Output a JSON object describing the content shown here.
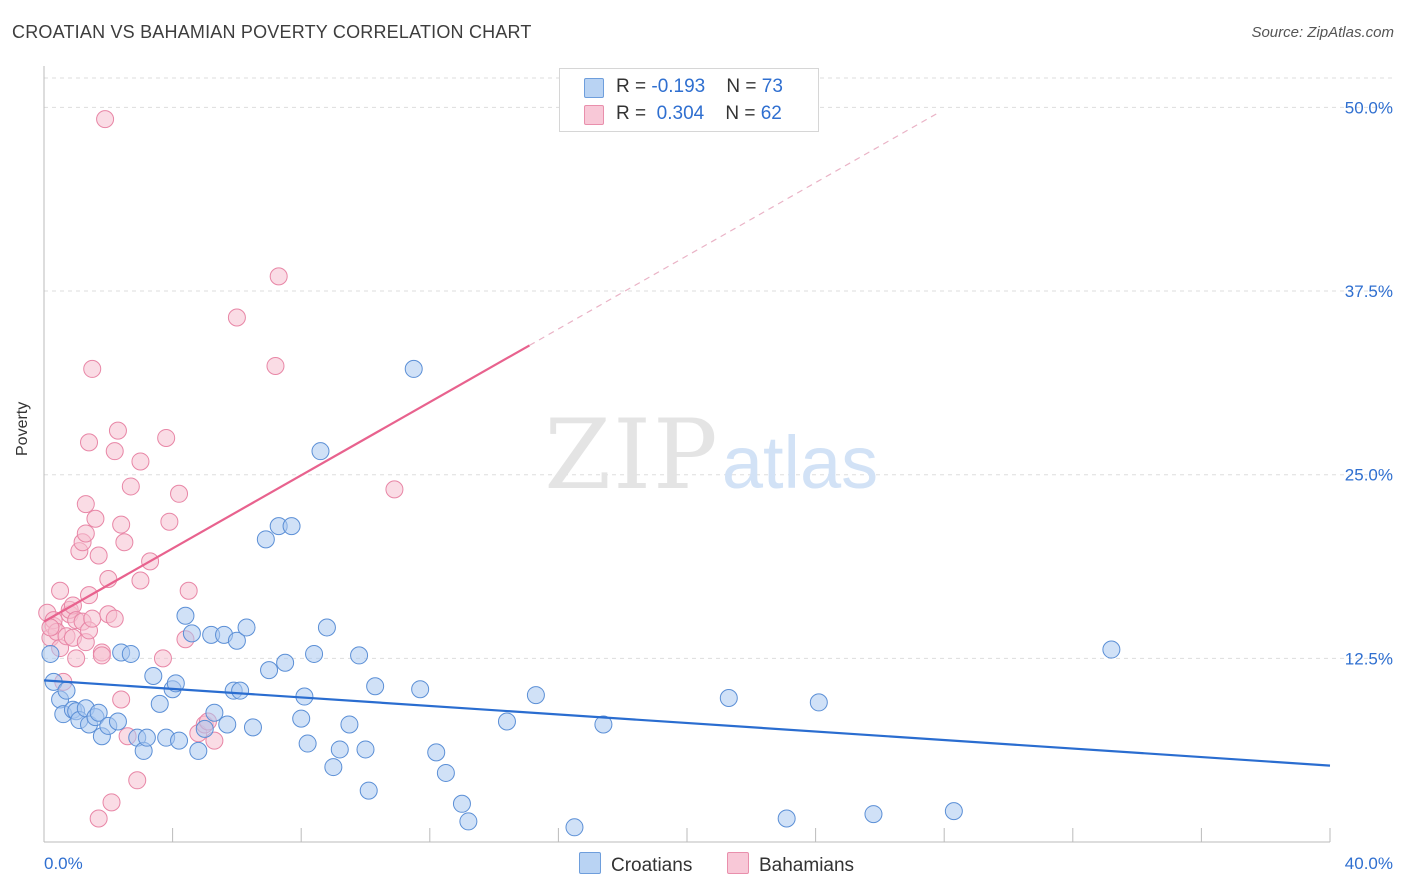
{
  "title": "CROATIAN VS BAHAMIAN POVERTY CORRELATION CHART",
  "source": "Source: ZipAtlas.com",
  "watermark": {
    "zip": "ZIP",
    "atlas": "atlas"
  },
  "colors": {
    "croatians_fill": "#a9c8f0",
    "croatians_stroke": "#5b8fd6",
    "croatians_line": "#2a6dd0",
    "bahamians_fill": "#f5bfd0",
    "bahamians_stroke": "#e886a6",
    "bahamians_line": "#e8628e",
    "tick_label": "#2f6fd0"
  },
  "legend": {
    "croatians": {
      "r_label": "R = ",
      "r_value": "-0.193",
      "n_label": "N = ",
      "n_value": "73"
    },
    "bahamians": {
      "r_label": "R = ",
      "r_value": "0.304",
      "n_label": "N = ",
      "n_value": "62"
    }
  },
  "chart_data": {
    "type": "scatter",
    "title": "CROATIAN VS BAHAMIAN POVERTY CORRELATION CHART",
    "xlabel": "",
    "ylabel": "Poverty",
    "xlim": [
      0,
      40
    ],
    "ylim": [
      0,
      52
    ],
    "x_tick_labels": [
      "0.0%",
      "40.0%"
    ],
    "y_ticks": [
      12.5,
      25.0,
      37.5,
      50.0
    ],
    "y_tick_labels": [
      "12.5%",
      "25.0%",
      "37.5%",
      "50.0%"
    ],
    "grid": true,
    "legend_position": "top-center",
    "series": [
      {
        "name": "Croatians",
        "points": [
          [
            0.2,
            12.8
          ],
          [
            0.3,
            10.9
          ],
          [
            0.5,
            9.7
          ],
          [
            0.6,
            8.7
          ],
          [
            0.7,
            10.3
          ],
          [
            0.9,
            9.0
          ],
          [
            1.0,
            8.9
          ],
          [
            1.1,
            8.3
          ],
          [
            1.3,
            9.1
          ],
          [
            1.4,
            8.0
          ],
          [
            1.6,
            8.5
          ],
          [
            1.7,
            8.8
          ],
          [
            1.8,
            7.2
          ],
          [
            2.0,
            7.9
          ],
          [
            2.3,
            8.2
          ],
          [
            2.4,
            12.9
          ],
          [
            2.7,
            12.8
          ],
          [
            2.9,
            7.1
          ],
          [
            3.1,
            6.2
          ],
          [
            3.2,
            7.1
          ],
          [
            3.4,
            11.3
          ],
          [
            3.6,
            9.4
          ],
          [
            3.8,
            7.1
          ],
          [
            4.0,
            10.4
          ],
          [
            4.1,
            10.8
          ],
          [
            4.2,
            6.9
          ],
          [
            4.4,
            15.4
          ],
          [
            4.6,
            14.2
          ],
          [
            4.8,
            6.2
          ],
          [
            5.0,
            7.7
          ],
          [
            5.2,
            14.1
          ],
          [
            5.3,
            8.8
          ],
          [
            5.6,
            14.1
          ],
          [
            5.7,
            8.0
          ],
          [
            5.9,
            10.3
          ],
          [
            6.0,
            13.7
          ],
          [
            6.1,
            10.3
          ],
          [
            6.3,
            14.6
          ],
          [
            6.5,
            7.8
          ],
          [
            6.9,
            20.6
          ],
          [
            7.0,
            11.7
          ],
          [
            7.3,
            21.5
          ],
          [
            7.5,
            12.2
          ],
          [
            7.7,
            21.5
          ],
          [
            8.0,
            8.4
          ],
          [
            8.1,
            9.9
          ],
          [
            8.2,
            6.7
          ],
          [
            8.4,
            12.8
          ],
          [
            8.6,
            26.6
          ],
          [
            8.8,
            14.6
          ],
          [
            9.0,
            5.1
          ],
          [
            9.2,
            6.3
          ],
          [
            9.5,
            8.0
          ],
          [
            9.8,
            12.7
          ],
          [
            10.0,
            6.3
          ],
          [
            10.1,
            3.5
          ],
          [
            10.3,
            10.6
          ],
          [
            11.5,
            32.2
          ],
          [
            11.7,
            10.4
          ],
          [
            12.2,
            6.1
          ],
          [
            12.5,
            4.7
          ],
          [
            13.0,
            2.6
          ],
          [
            13.2,
            1.4
          ],
          [
            14.4,
            8.2
          ],
          [
            15.3,
            10.0
          ],
          [
            16.5,
            1.0
          ],
          [
            17.4,
            8.0
          ],
          [
            21.3,
            9.8
          ],
          [
            23.1,
            1.6
          ],
          [
            24.1,
            9.5
          ],
          [
            25.8,
            1.9
          ],
          [
            28.3,
            2.1
          ],
          [
            33.2,
            13.1
          ]
        ]
      },
      {
        "name": "Bahamians",
        "points": [
          [
            0.1,
            15.6
          ],
          [
            0.2,
            13.9
          ],
          [
            0.3,
            14.7
          ],
          [
            0.3,
            15.1
          ],
          [
            0.4,
            14.3
          ],
          [
            0.5,
            13.2
          ],
          [
            0.5,
            17.1
          ],
          [
            0.6,
            10.9
          ],
          [
            0.7,
            14.0
          ],
          [
            0.8,
            15.5
          ],
          [
            0.8,
            15.8
          ],
          [
            0.9,
            16.1
          ],
          [
            0.9,
            13.9
          ],
          [
            1.0,
            15.1
          ],
          [
            1.0,
            12.5
          ],
          [
            1.1,
            19.8
          ],
          [
            1.2,
            20.4
          ],
          [
            1.2,
            15.0
          ],
          [
            1.3,
            13.6
          ],
          [
            1.3,
            21.0
          ],
          [
            1.3,
            23.0
          ],
          [
            1.4,
            14.4
          ],
          [
            1.4,
            16.8
          ],
          [
            1.4,
            27.2
          ],
          [
            1.5,
            32.2
          ],
          [
            1.5,
            15.2
          ],
          [
            1.6,
            22.0
          ],
          [
            1.7,
            19.5
          ],
          [
            1.7,
            1.6
          ],
          [
            1.8,
            12.9
          ],
          [
            1.8,
            12.7
          ],
          [
            1.9,
            49.2
          ],
          [
            2.0,
            15.5
          ],
          [
            2.0,
            17.9
          ],
          [
            2.1,
            2.7
          ],
          [
            2.2,
            26.6
          ],
          [
            2.2,
            15.2
          ],
          [
            2.3,
            28.0
          ],
          [
            2.4,
            9.7
          ],
          [
            2.4,
            21.6
          ],
          [
            2.5,
            20.4
          ],
          [
            2.6,
            7.2
          ],
          [
            2.7,
            24.2
          ],
          [
            2.9,
            4.2
          ],
          [
            3.0,
            17.8
          ],
          [
            3.0,
            25.9
          ],
          [
            3.3,
            19.1
          ],
          [
            3.7,
            12.5
          ],
          [
            3.8,
            27.5
          ],
          [
            3.9,
            21.8
          ],
          [
            4.2,
            23.7
          ],
          [
            4.4,
            13.8
          ],
          [
            4.5,
            17.1
          ],
          [
            4.8,
            7.4
          ],
          [
            5.0,
            8.0
          ],
          [
            5.1,
            8.2
          ],
          [
            5.3,
            6.9
          ],
          [
            6.0,
            35.7
          ],
          [
            7.2,
            32.4
          ],
          [
            7.3,
            38.5
          ],
          [
            10.9,
            24.0
          ],
          [
            0.2,
            14.6
          ]
        ]
      }
    ],
    "trend_lines": [
      {
        "series": "Croatians",
        "x": [
          0,
          40
        ],
        "y": [
          11.0,
          5.2
        ]
      },
      {
        "series": "Bahamians",
        "x": [
          0,
          15.1
        ],
        "y": [
          15.0,
          33.8
        ],
        "dashed_extension_x": [
          15.1,
          27.8
        ]
      }
    ],
    "bottom_legend": [
      "Croatians",
      "Bahamians"
    ]
  }
}
